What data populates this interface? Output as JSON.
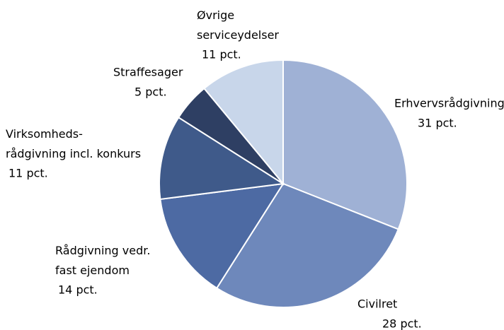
{
  "chart_data": {
    "type": "pie",
    "categories": [
      "Erhvervsrådgivning",
      "Civilret",
      "Rådgivning vedr.\nfast ejendom",
      "Virksomheds-\nrådgivning incl. konkurs",
      "Straffesager",
      "Øvrige\nserviceydelser"
    ],
    "values": [
      31,
      28,
      14,
      11,
      5,
      11
    ],
    "value_labels": [
      "31 pct.",
      "28 pct.",
      "14 pct.",
      "11 pct.",
      "5 pct.",
      "11 pct."
    ],
    "colors": [
      "#9fb1d5",
      "#6e88bb",
      "#4d6aa3",
      "#3f5a8a",
      "#2e3f63",
      "#c8d6ea"
    ]
  }
}
